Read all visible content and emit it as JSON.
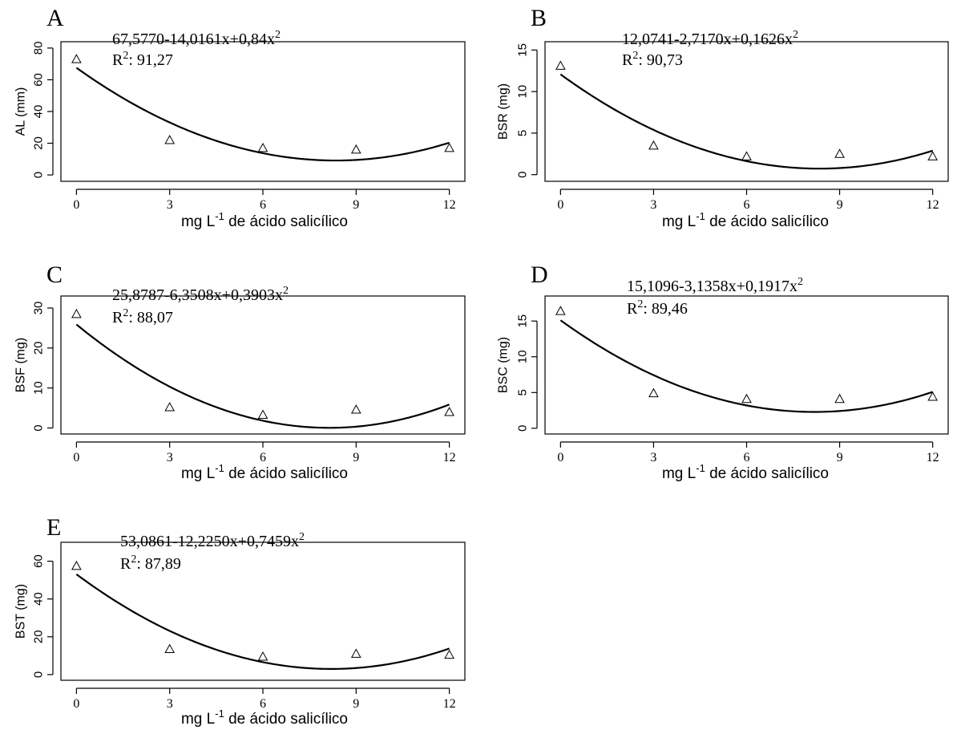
{
  "chart_data": [
    {
      "type": "scatter",
      "panel": "A",
      "equation": "67,5770-14,0161x+0,84x",
      "equation_exp": "2",
      "r2_prefix": "R",
      "r2_exp": "2",
      "r2_value": ": 91,27",
      "xlabel": "mg L",
      "xlabel_exp": "-1",
      "xlabel_suffix": " de ácido salicílico",
      "ylabel": "AL (mm)",
      "x": [
        0,
        3,
        6,
        9,
        12
      ],
      "y": [
        73,
        22,
        17,
        16,
        17
      ],
      "fit": {
        "a": 67.577,
        "b": -14.0161,
        "c": 0.84
      },
      "xticks": [
        0,
        3,
        6,
        9,
        12
      ],
      "yticks": [
        0,
        20,
        40,
        60,
        80
      ],
      "xlim": [
        -0.5,
        12.5
      ],
      "ylim": [
        -4,
        84
      ]
    },
    {
      "type": "scatter",
      "panel": "B",
      "equation": "12,0741-2,7170x+0,1626x",
      "equation_exp": "2",
      "r2_prefix": "R",
      "r2_exp": "2",
      "r2_value": ": 90,73",
      "xlabel": "mg L",
      "xlabel_exp": "-1",
      "xlabel_suffix": " de ácido salicílico",
      "ylabel": "BSR (mg)",
      "x": [
        0,
        3,
        6,
        9,
        12
      ],
      "y": [
        13.1,
        3.5,
        2.2,
        2.5,
        2.2
      ],
      "fit": {
        "a": 12.0741,
        "b": -2.717,
        "c": 0.1626
      },
      "xticks": [
        0,
        3,
        6,
        9,
        12
      ],
      "yticks": [
        0,
        5,
        10,
        15
      ],
      "xlim": [
        -0.5,
        12.5
      ],
      "ylim": [
        -0.8,
        16
      ]
    },
    {
      "type": "scatter",
      "panel": "C",
      "equation": "25,8787-6,3508x+0,3903x",
      "equation_exp": "2",
      "r2_prefix": "R",
      "r2_exp": "2",
      "r2_value": ": 88,07",
      "xlabel": "mg L",
      "xlabel_exp": "-1",
      "xlabel_suffix": " de ácido salicílico",
      "ylabel": "BSF (mg)",
      "x": [
        0,
        3,
        6,
        9,
        12
      ],
      "y": [
        28.5,
        5.2,
        3.3,
        4.6,
        4
      ],
      "fit": {
        "a": 25.8787,
        "b": -6.3508,
        "c": 0.3903
      },
      "xticks": [
        0,
        3,
        6,
        9,
        12
      ],
      "yticks": [
        0,
        10,
        20,
        30
      ],
      "xlim": [
        -0.5,
        12.5
      ],
      "ylim": [
        -1.5,
        33
      ]
    },
    {
      "type": "scatter",
      "panel": "D",
      "equation": "15,1096-3,1358x+0,1917x",
      "equation_exp": "2",
      "r2_prefix": "R",
      "r2_exp": "2",
      "r2_value": ": 89,46",
      "xlabel": "mg L",
      "xlabel_exp": "-1",
      "xlabel_suffix": " de ácido salicílico",
      "ylabel": "BSC (mg)",
      "x": [
        0,
        3,
        6,
        9,
        12
      ],
      "y": [
        16.4,
        4.9,
        4.1,
        4.1,
        4.4
      ],
      "fit": {
        "a": 15.1096,
        "b": -3.1358,
        "c": 0.1917
      },
      "xticks": [
        0,
        3,
        6,
        9,
        12
      ],
      "yticks": [
        0,
        5,
        10,
        15
      ],
      "xlim": [
        -0.5,
        12.5
      ],
      "ylim": [
        -0.8,
        18.5
      ]
    },
    {
      "type": "scatter",
      "panel": "E",
      "equation": "53,0861-12,2250x+0,7459x",
      "equation_exp": "2",
      "r2_prefix": "R",
      "r2_exp": "2",
      "r2_value": ": 87,89",
      "xlabel": "mg L",
      "xlabel_exp": "-1",
      "xlabel_suffix": " de ácido salicílico",
      "ylabel": "BST (mg)",
      "x": [
        0,
        3,
        6,
        9,
        12
      ],
      "y": [
        57.5,
        13.5,
        9.5,
        11,
        10.5
      ],
      "fit": {
        "a": 53.0861,
        "b": -12.225,
        "c": 0.7459
      },
      "xticks": [
        0,
        3,
        6,
        9,
        12
      ],
      "yticks": [
        0,
        20,
        40,
        60
      ],
      "xlim": [
        -0.5,
        12.5
      ],
      "ylim": [
        -3,
        70
      ]
    }
  ]
}
